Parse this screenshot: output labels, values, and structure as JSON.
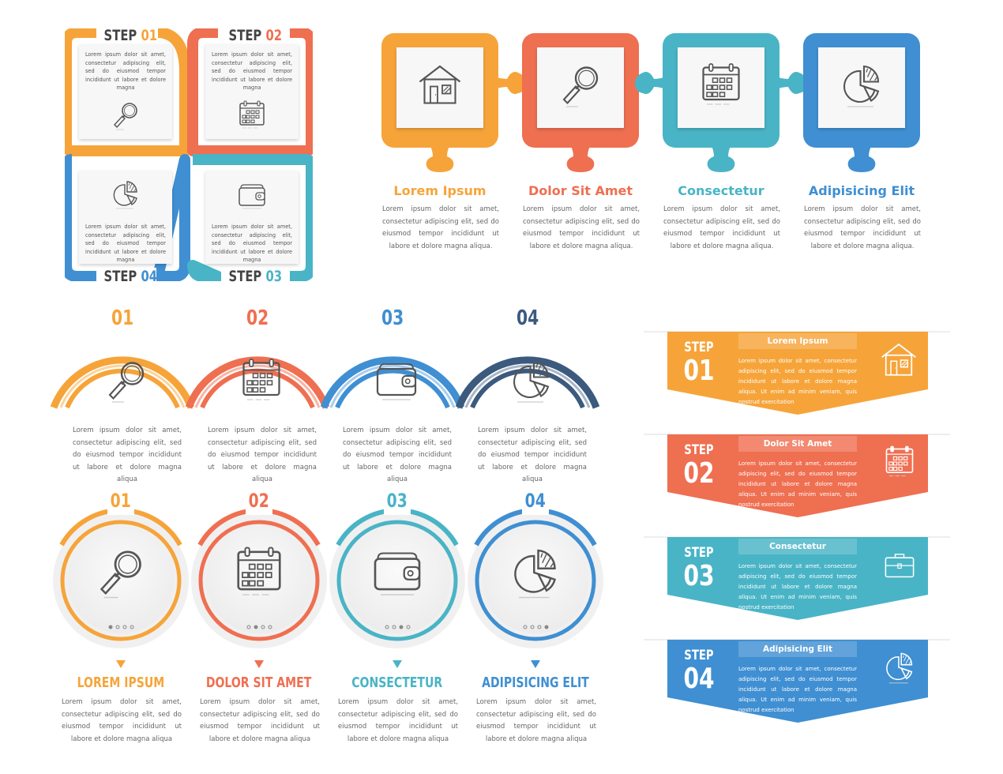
{
  "colors": {
    "orange": "#f6a43a",
    "red": "#ef6f51",
    "teal": "#49b4c6",
    "blue": "#3f8fd2",
    "navy": "#3c5a7e",
    "gray": "#d8d8d8"
  },
  "lorem_short": "Lorem ipsum dolor sit amet, consectetur adipiscing elit, sed do eiusmod tempor incididunt ut labore et dolore magna",
  "lorem_puzzle": "Lorem ipsum dolor sit amet, consectetur adipiscing elit, sed do eiusmod tempor incididunt ut labore et dolore magna aliqua.",
  "lorem_arc": "Lorem ipsum dolor sit amet, consectetur adipiscing elit, sed do eiusmod tempor incididunt ut labore et dolore magna aliqua",
  "lorem_banner": "Lorem ipsum dolor sit amet, consectetur adipiscing elit, sed do eiusmod tempor incididunt ut labore et dolore magna aliqua. Ut enim ad minim veniam, quis nostrud exercitation",
  "quad": {
    "step_word": "STEP",
    "steps": [
      {
        "num": "01",
        "icon": "magnifier-icon"
      },
      {
        "num": "02",
        "icon": "calendar-icon"
      },
      {
        "num": "03",
        "icon": "wallet-icon"
      },
      {
        "num": "04",
        "icon": "pie-chart-icon"
      }
    ]
  },
  "puzzle": {
    "items": [
      {
        "title": "Lorem Ipsum",
        "icon": "house-icon"
      },
      {
        "title": "Dolor Sit Amet",
        "icon": "magnifier-icon"
      },
      {
        "title": "Consectetur",
        "icon": "calendar-icon"
      },
      {
        "title": "Adipisicing Elit",
        "icon": "pie-chart-icon"
      }
    ]
  },
  "arcs": {
    "items": [
      {
        "num": "01",
        "icon": "magnifier-icon"
      },
      {
        "num": "02",
        "icon": "calendar-icon"
      },
      {
        "num": "03",
        "icon": "wallet-icon"
      },
      {
        "num": "04",
        "icon": "pie-chart-icon"
      }
    ]
  },
  "circles": {
    "items": [
      {
        "num": "01",
        "title": "LOREM IPSUM",
        "icon": "magnifier-icon"
      },
      {
        "num": "02",
        "title": "DOLOR SIT AMET",
        "icon": "calendar-icon"
      },
      {
        "num": "03",
        "title": "CONSECTETUR",
        "icon": "wallet-icon"
      },
      {
        "num": "04",
        "title": "ADIPISICING ELIT",
        "icon": "pie-chart-icon"
      }
    ]
  },
  "banners": {
    "step_word": "STEP",
    "items": [
      {
        "num": "01",
        "title": "Lorem Ipsum",
        "icon": "house-icon"
      },
      {
        "num": "02",
        "title": "Dolor Sit Amet",
        "icon": "calendar-icon"
      },
      {
        "num": "03",
        "title": "Consectetur",
        "icon": "briefcase-icon"
      },
      {
        "num": "04",
        "title": "Adipisicing Elit",
        "icon": "pie-chart-icon"
      }
    ]
  }
}
